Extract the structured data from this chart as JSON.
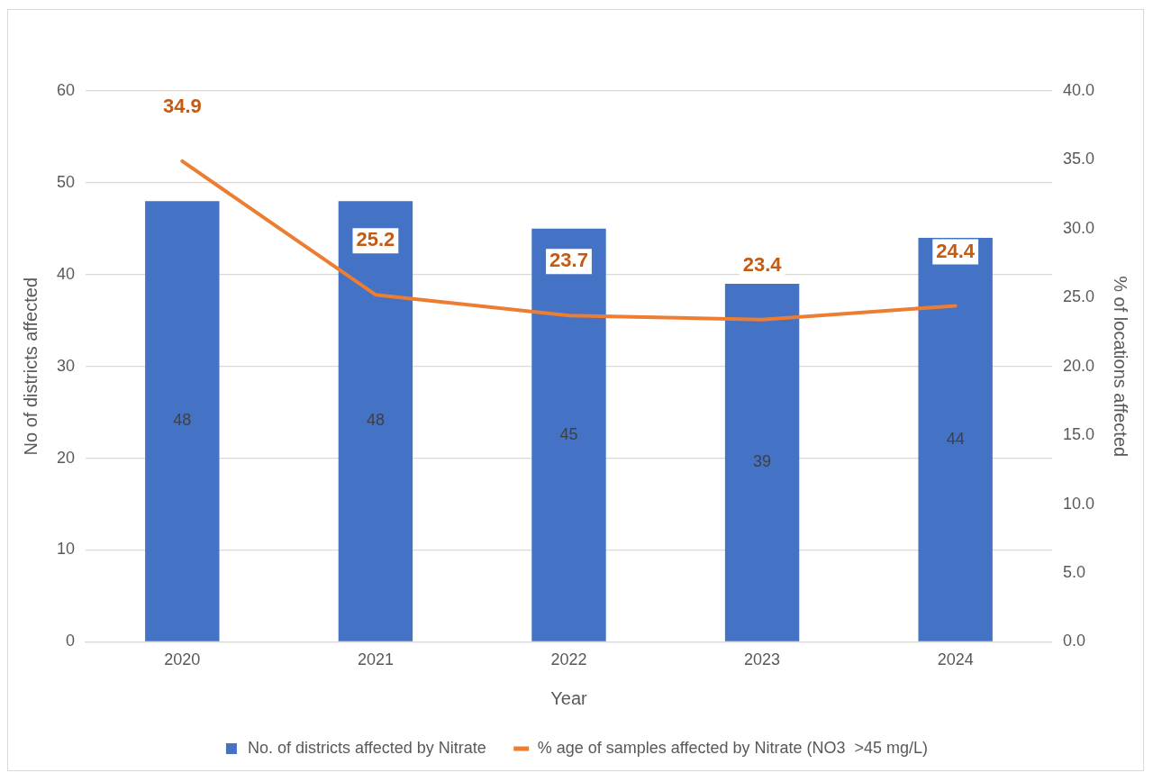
{
  "chart_data": {
    "type": "bar",
    "xlabel": "Year",
    "ylabel": "No of districts affected",
    "y2label": "% of locations affected",
    "categories": [
      "2020",
      "2021",
      "2022",
      "2023",
      "2024"
    ],
    "series": [
      {
        "name": "No. of districts affected by Nitrate",
        "type": "bar",
        "color": "#4472c4",
        "values": [
          48,
          48,
          45,
          39,
          44
        ]
      },
      {
        "name": "% age of samples affected by Nitrate (NO3  >45 mg/L)",
        "type": "line",
        "axis": "y2",
        "color": "#ed7d31",
        "values": [
          34.9,
          25.2,
          23.7,
          23.4,
          24.4
        ]
      }
    ],
    "ylim": [
      0,
      60
    ],
    "yticks": [
      0,
      10,
      20,
      30,
      40,
      50,
      60
    ],
    "y2lim": [
      0,
      40
    ],
    "y2ticks": [
      {
        "value": 0,
        "label": "0.0"
      },
      {
        "value": 5,
        "label": "5.0"
      },
      {
        "value": 10,
        "label": "10.0"
      },
      {
        "value": 15,
        "label": "15.0"
      },
      {
        "value": 20,
        "label": "20.0"
      },
      {
        "value": 25,
        "label": "25.0"
      },
      {
        "value": 30,
        "label": "30.0"
      },
      {
        "value": 35,
        "label": "35.0"
      },
      {
        "value": 40,
        "label": "40.0"
      }
    ],
    "grid": "y",
    "legend": "bottom",
    "marker": "none",
    "line_style": "solid",
    "data_labels": true
  }
}
